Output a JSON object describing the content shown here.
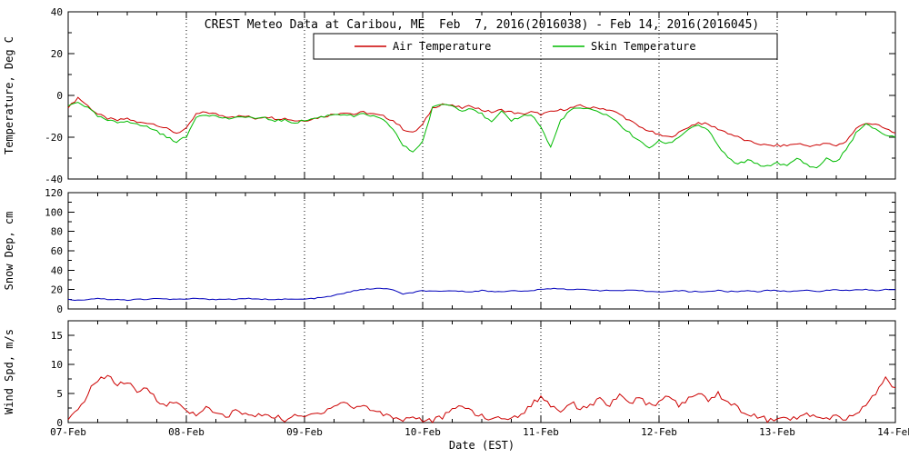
{
  "chart_data": [
    {
      "type": "line",
      "title": "CREST Meteo Data at Caribou, ME  Feb  7, 2016(2016038) - Feb 14, 2016(2016045)",
      "ylabel": "Temperature, Deg C",
      "xlabel": "",
      "ylim": [
        -40,
        40
      ],
      "yticks": [
        -40,
        -20,
        0,
        20,
        40
      ],
      "xlim": [
        7,
        14
      ],
      "xticks": [
        7,
        8,
        9,
        10,
        11,
        12,
        13,
        14
      ],
      "x_tick_labels": [
        "07-Feb",
        "08-Feb",
        "09-Feb",
        "10-Feb",
        "11-Feb",
        "12-Feb",
        "13-Feb",
        "14-Feb"
      ],
      "x_sampling": "85 evenly spaced samples from day 7.0 (07-Feb) to day 14.0 (14-Feb), every 2 hours",
      "grid": "vertical dotted lines at each day",
      "legend_position": "top-center boxed",
      "series": [
        {
          "name": "Air Temperature",
          "color": "#cc0000",
          "values": [
            -6,
            -1,
            -5,
            -9,
            -11,
            -12,
            -11,
            -13,
            -13,
            -14,
            -16,
            -18,
            -16,
            -9,
            -8,
            -9,
            -10,
            -10,
            -10,
            -11,
            -10,
            -11,
            -11,
            -12,
            -12,
            -11,
            -10,
            -9,
            -8,
            -9,
            -8,
            -9,
            -10,
            -12,
            -16,
            -18,
            -14,
            -6,
            -4,
            -5,
            -6,
            -5,
            -7,
            -8,
            -7,
            -8,
            -9,
            -8,
            -9,
            -8,
            -7,
            -6,
            -5,
            -6,
            -6,
            -7,
            -9,
            -12,
            -15,
            -17,
            -19,
            -20,
            -18,
            -15,
            -13,
            -14,
            -16,
            -18,
            -20,
            -22,
            -23,
            -24,
            -24,
            -24,
            -23,
            -24,
            -24,
            -23,
            -24,
            -22,
            -16,
            -13,
            -14,
            -16,
            -18
          ]
        },
        {
          "name": "Skin Temperature",
          "color": "#00bb00",
          "values": [
            -5,
            -3,
            -6,
            -10,
            -12,
            -13,
            -12,
            -14,
            -15,
            -17,
            -20,
            -22,
            -20,
            -10,
            -9,
            -10,
            -11,
            -11,
            -10,
            -11,
            -11,
            -12,
            -12,
            -13,
            -12,
            -11,
            -10,
            -9,
            -9,
            -10,
            -9,
            -10,
            -12,
            -16,
            -24,
            -27,
            -22,
            -6,
            -4,
            -5,
            -7,
            -6,
            -9,
            -13,
            -8,
            -12,
            -10,
            -9,
            -15,
            -25,
            -12,
            -7,
            -6,
            -7,
            -8,
            -10,
            -14,
            -18,
            -22,
            -25,
            -22,
            -23,
            -20,
            -16,
            -14,
            -17,
            -24,
            -30,
            -33,
            -31,
            -33,
            -34,
            -32,
            -34,
            -30,
            -33,
            -35,
            -30,
            -32,
            -26,
            -18,
            -14,
            -16,
            -19,
            -20
          ]
        }
      ]
    },
    {
      "type": "line",
      "ylabel": "Snow Dep, cm",
      "xlabel": "",
      "ylim": [
        0,
        120
      ],
      "yticks": [
        0,
        20,
        40,
        60,
        80,
        100,
        120
      ],
      "xlim": [
        7,
        14
      ],
      "series": [
        {
          "name": "Snow Depth",
          "color": "#0000bb",
          "values": [
            10,
            9,
            10,
            11,
            10,
            10,
            9,
            10,
            10,
            11,
            10,
            10,
            10,
            11,
            10,
            10,
            10,
            10,
            11,
            10,
            10,
            10,
            10,
            10,
            10,
            11,
            12,
            14,
            16,
            19,
            20,
            21,
            21,
            20,
            15,
            17,
            19,
            18,
            18,
            19,
            18,
            18,
            19,
            18,
            18,
            19,
            18,
            19,
            20,
            21,
            21,
            20,
            20,
            20,
            19,
            19,
            19,
            19,
            19,
            18,
            18,
            18,
            19,
            18,
            18,
            18,
            19,
            18,
            18,
            19,
            18,
            19,
            19,
            18,
            19,
            19,
            18,
            19,
            20,
            19,
            20,
            20,
            19,
            20,
            20
          ]
        }
      ]
    },
    {
      "type": "line",
      "ylabel": "Wind Spd, m/s",
      "xlabel": "Date (EST)",
      "ylim": [
        0,
        17.5
      ],
      "yticks": [
        0,
        5,
        10,
        15
      ],
      "xlim": [
        7,
        14
      ],
      "series": [
        {
          "name": "Wind Speed",
          "color": "#cc0000",
          "values": [
            0.5,
            2,
            5,
            7.5,
            8,
            6.5,
            7,
            5,
            6,
            4,
            3,
            3.5,
            2,
            1.5,
            2.5,
            1.5,
            1,
            2,
            1.5,
            1,
            1.5,
            1,
            0.5,
            1,
            1,
            1.5,
            2,
            3,
            3.5,
            2.5,
            3,
            2,
            1.5,
            1,
            0.5,
            1,
            0.5,
            0.3,
            1,
            2,
            3,
            2,
            1,
            0.5,
            1,
            0.5,
            1.5,
            3,
            4.5,
            3,
            2,
            3.5,
            2.5,
            3,
            4,
            3,
            4.5,
            3.5,
            4,
            3,
            3.5,
            4.5,
            3,
            4,
            5,
            4,
            5,
            3.5,
            2.5,
            1.5,
            1,
            0.5,
            0.3,
            1,
            0.5,
            1.5,
            1,
            0.5,
            1,
            0.5,
            1.5,
            3,
            5,
            7.5,
            6
          ]
        }
      ]
    }
  ]
}
